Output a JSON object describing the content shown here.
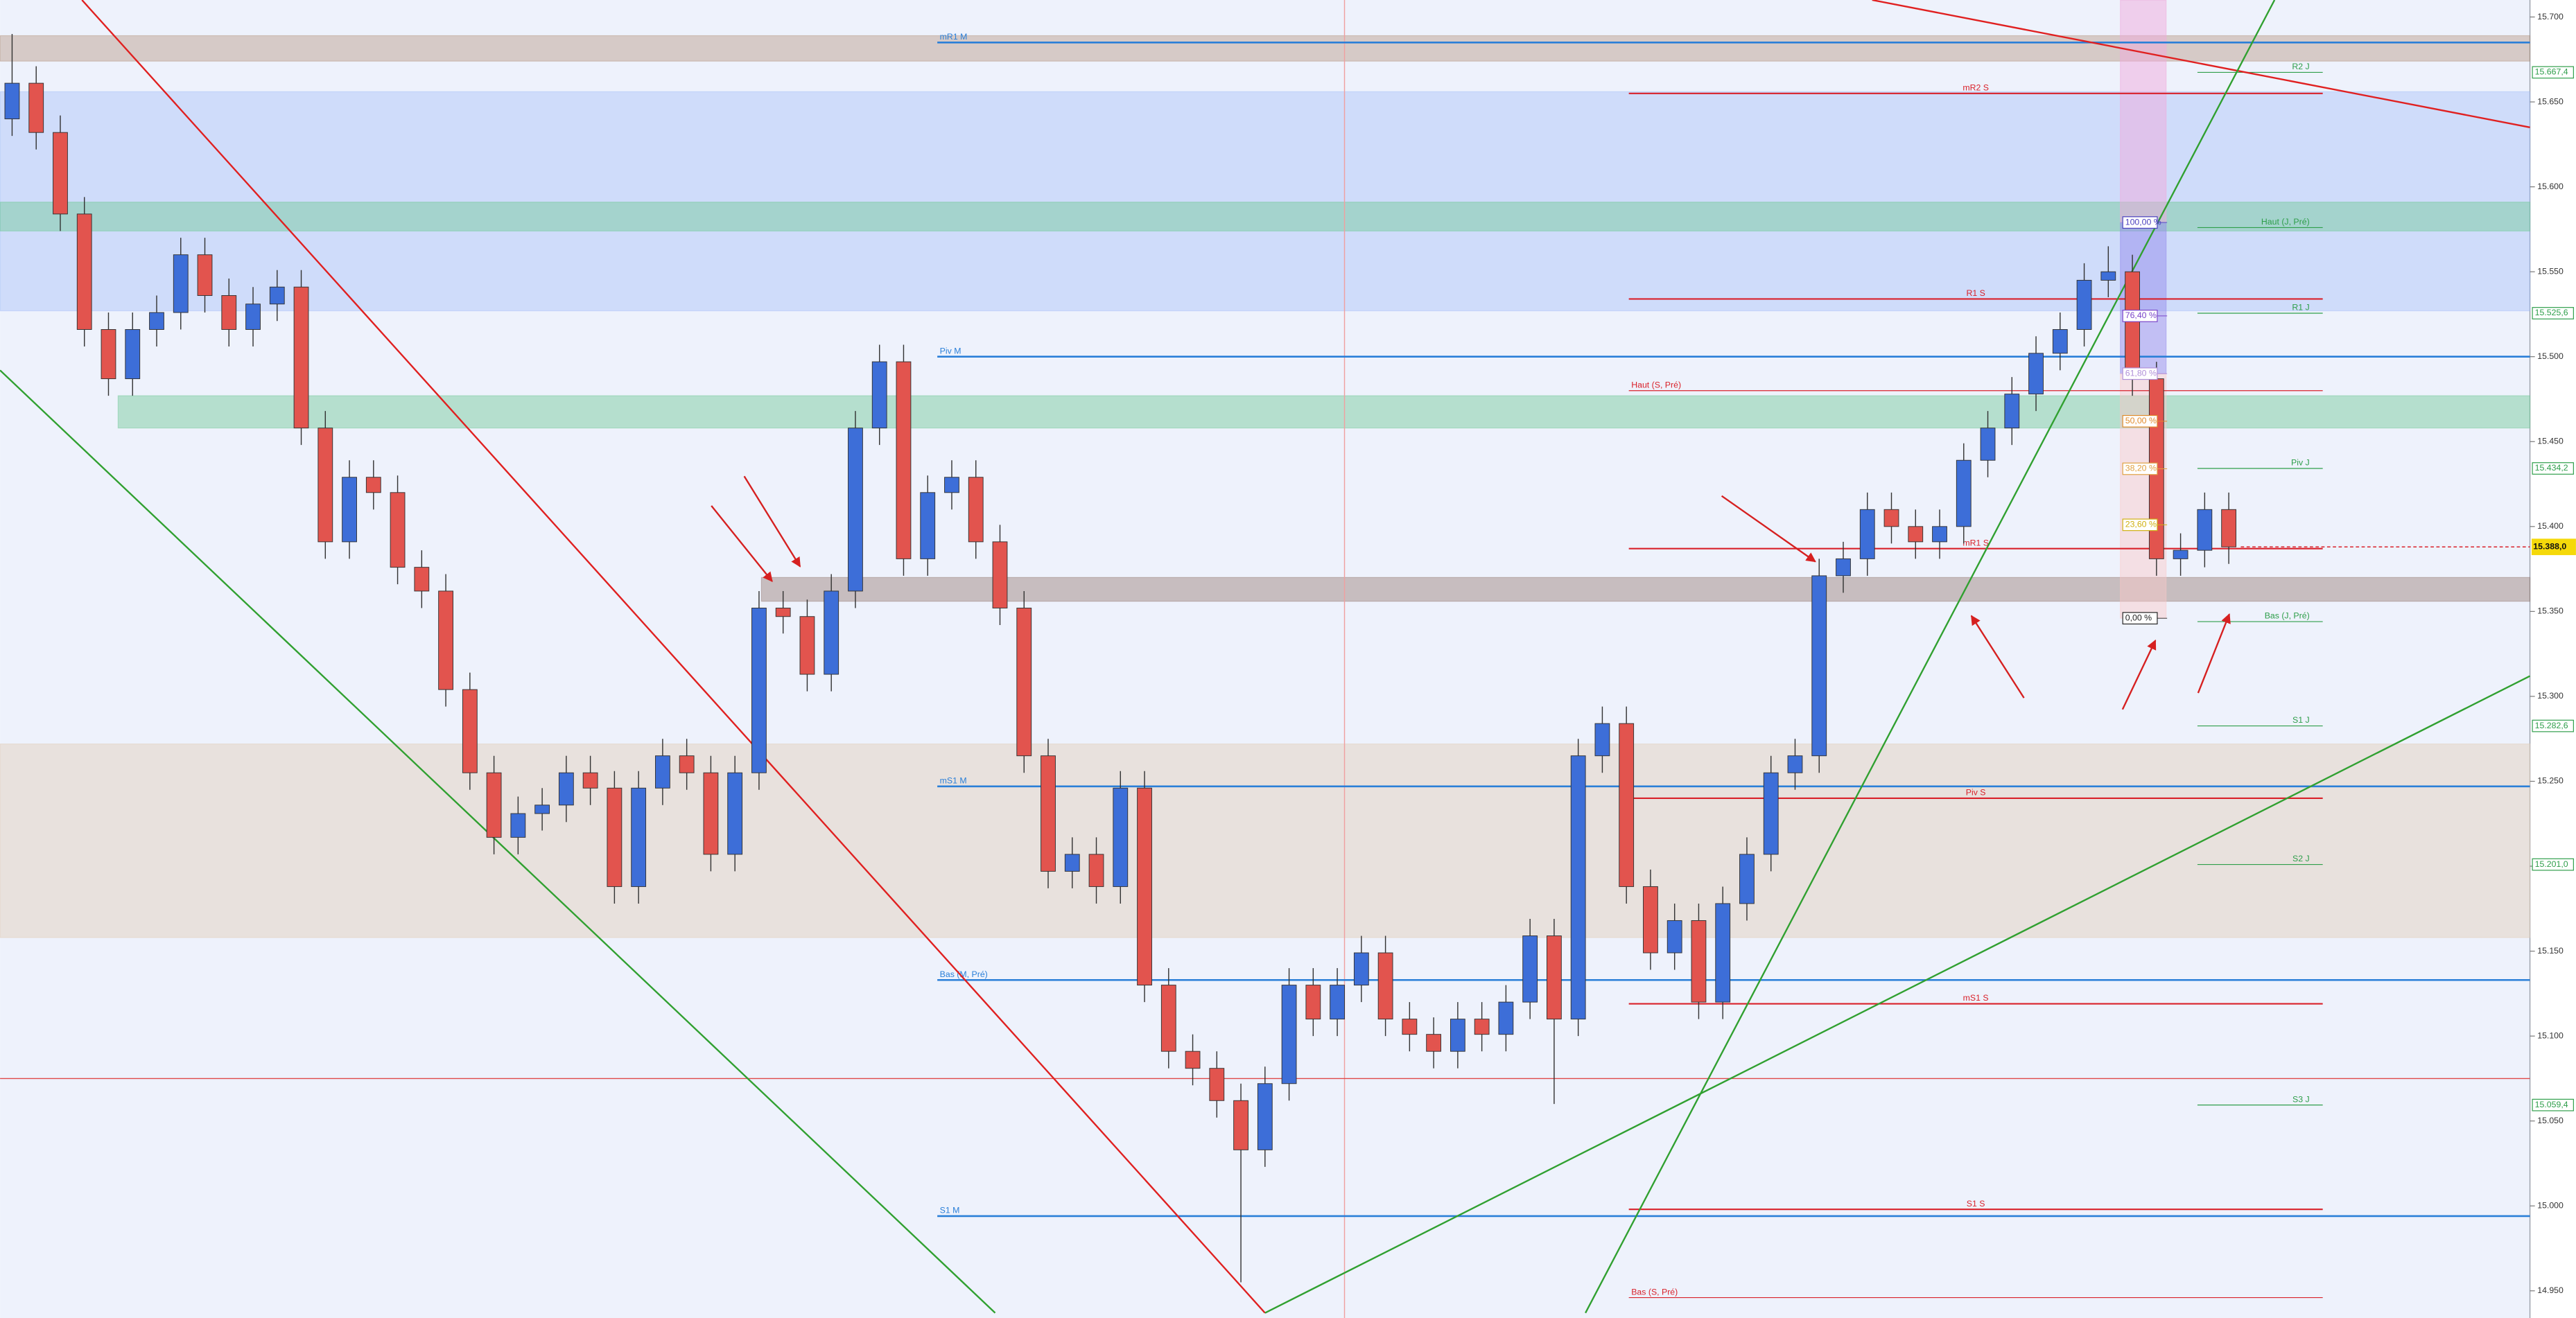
{
  "chart_data": {
    "type": "candlestick",
    "xlim": [
      0,
      105
    ],
    "ylim": [
      14934,
      15710
    ],
    "yticks": [
      {
        "value": 15700,
        "label": "15.700"
      },
      {
        "value": 15650,
        "label": "15.650"
      },
      {
        "value": 15600,
        "label": "15.600"
      },
      {
        "value": 15550,
        "label": "15.550"
      },
      {
        "value": 15500,
        "label": "15.500"
      },
      {
        "value": 15450,
        "label": "15.450"
      },
      {
        "value": 15400,
        "label": "15.400"
      },
      {
        "value": 15350,
        "label": "15.350"
      },
      {
        "value": 15300,
        "label": "15.300"
      },
      {
        "value": 15250,
        "label": "15.250"
      },
      {
        "value": 15200,
        "label": "15.200"
      },
      {
        "value": 15150,
        "label": "15.150"
      },
      {
        "value": 15100,
        "label": "15.100"
      },
      {
        "value": 15050,
        "label": "15.050"
      },
      {
        "value": 15000,
        "label": "15.000"
      },
      {
        "value": 14950,
        "label": "14.950"
      }
    ],
    "up_color": "#3d6ed8",
    "down_color": "#e2544e",
    "open": [
      15640,
      15661,
      15632,
      15584,
      15516,
      15487,
      15516,
      15526,
      15560,
      15536,
      15516,
      15531,
      15541,
      15458,
      15391,
      15429,
      15420,
      15376,
      15362,
      15304,
      15255,
      15217,
      15231,
      15236,
      15255,
      15246,
      15188,
      15246,
      15265,
      15255,
      15207,
      15255,
      15352,
      15347,
      15313,
      15362,
      15458,
      15497,
      15381,
      15420,
      15429,
      15391,
      15352,
      15265,
      15197,
      15207,
      15188,
      15246,
      15130,
      15091,
      15081,
      15062,
      15033,
      15072,
      15130,
      15110,
      15130,
      15149,
      15110,
      15101,
      15091,
      15110,
      15101,
      15120,
      15159,
      15110,
      15265,
      15284,
      15188,
      15149,
      15168,
      15120,
      15178,
      15207,
      15255,
      15265,
      15371,
      15381,
      15410,
      15400,
      15391,
      15400,
      15439,
      15458,
      15478,
      15502,
      15516,
      15545,
      15550,
      15487,
      15381,
      15386,
      15410
    ],
    "high": [
      15690,
      15671,
      15642,
      15594,
      15526,
      15526,
      15536,
      15570,
      15570,
      15546,
      15541,
      15551,
      15551,
      15468,
      15439,
      15439,
      15430,
      15386,
      15372,
      15314,
      15265,
      15241,
      15246,
      15265,
      15265,
      15256,
      15256,
      15275,
      15275,
      15265,
      15265,
      15362,
      15362,
      15357,
      15372,
      15468,
      15507,
      15507,
      15430,
      15439,
      15439,
      15401,
      15362,
      15275,
      15217,
      15217,
      15256,
      15256,
      15140,
      15101,
      15091,
      15072,
      15082,
      15140,
      15140,
      15140,
      15159,
      15159,
      15120,
      15111,
      15120,
      15120,
      15130,
      15169,
      15169,
      15275,
      15294,
      15294,
      15198,
      15178,
      15178,
      15188,
      15217,
      15265,
      15275,
      15381,
      15391,
      15420,
      15420,
      15410,
      15410,
      15449,
      15468,
      15488,
      15512,
      15526,
      15555,
      15565,
      15560,
      15497,
      15396,
      15420,
      15420
    ],
    "low": [
      15630,
      15622,
      15574,
      15506,
      15477,
      15477,
      15506,
      15516,
      15526,
      15506,
      15506,
      15521,
      15448,
      15381,
      15381,
      15410,
      15366,
      15352,
      15294,
      15245,
      15207,
      15207,
      15221,
      15226,
      15236,
      15178,
      15178,
      15236,
      15245,
      15197,
      15197,
      15245,
      15337,
      15303,
      15303,
      15352,
      15448,
      15371,
      15371,
      15410,
      15381,
      15342,
      15255,
      15187,
      15187,
      15178,
      15178,
      15120,
      15081,
      15071,
      15052,
      14955,
      15023,
      15062,
      15100,
      15100,
      15120,
      15100,
      15091,
      15081,
      15081,
      15091,
      15091,
      15110,
      15060,
      15100,
      15255,
      15178,
      15139,
      15139,
      15110,
      15110,
      15168,
      15197,
      15245,
      15255,
      15361,
      15371,
      15390,
      15381,
      15381,
      15390,
      15429,
      15448,
      15468,
      15492,
      15506,
      15535,
      15477,
      15371,
      15371,
      15376,
      15378
    ],
    "close": [
      15661,
      15632,
      15584,
      15516,
      15487,
      15516,
      15526,
      15560,
      15536,
      15516,
      15531,
      15541,
      15458,
      15391,
      15429,
      15420,
      15376,
      15362,
      15304,
      15255,
      15217,
      15231,
      15236,
      15255,
      15246,
      15188,
      15246,
      15265,
      15255,
      15207,
      15255,
      15352,
      15347,
      15313,
      15362,
      15458,
      15497,
      15381,
      15420,
      15429,
      15391,
      15352,
      15265,
      15197,
      15207,
      15188,
      15246,
      15130,
      15091,
      15081,
      15062,
      15033,
      15072,
      15130,
      15110,
      15130,
      15149,
      15110,
      15101,
      15091,
      15110,
      15101,
      15120,
      15159,
      15110,
      15265,
      15284,
      15188,
      15149,
      15168,
      15120,
      15178,
      15207,
      15255,
      15265,
      15371,
      15381,
      15410,
      15400,
      15391,
      15400,
      15439,
      15458,
      15478,
      15502,
      15516,
      15545,
      15550,
      15487,
      15381,
      15386,
      15410,
      15388
    ],
    "last": {
      "value": 15388,
      "label": "15.388,0",
      "color": "#f5d90a"
    },
    "zones": [
      {
        "from": 0,
        "to": 105,
        "y0": 15674,
        "y1": 15689,
        "color": "rgba(170,130,100,0.35)"
      },
      {
        "from": 0,
        "to": 105,
        "y0": 15527,
        "y1": 15656,
        "color": "rgba(150,180,245,0.35)"
      },
      {
        "from": 0,
        "to": 105,
        "y0": 15574,
        "y1": 15591,
        "color": "rgba(110,200,150,0.45)"
      },
      {
        "from": 4.9,
        "to": 105,
        "y0": 15458,
        "y1": 15477,
        "color": "rgba(110,200,150,0.45)"
      },
      {
        "from": 31.6,
        "to": 105,
        "y0": 15356,
        "y1": 15370,
        "color": "rgba(140,110,100,0.4)"
      },
      {
        "from": 0,
        "to": 105,
        "y0": 15158,
        "y1": 15272,
        "color": "rgba(225,205,185,0.45)"
      },
      {
        "from": 88.0,
        "to": 89.9,
        "y0": 15579,
        "y1": 15710,
        "color": "rgba(240,170,220,0.5)"
      },
      {
        "from": 88.0,
        "to": 89.9,
        "y0": 15490,
        "y1": 15579,
        "color": "rgba(150,140,235,0.5)"
      },
      {
        "from": 88.0,
        "to": 89.9,
        "y0": 15346,
        "y1": 15490,
        "color": "rgba(250,200,200,0.45)"
      }
    ],
    "hline": {
      "value": 15075,
      "color": "#e04848"
    },
    "vline": {
      "value": 55.8,
      "color": "#f0a0a0"
    },
    "trendlines": [
      {
        "color": "#e02020",
        "points": [
          [
            3.4,
            15710
          ],
          [
            52.5,
            14937
          ]
        ]
      },
      {
        "color": "#e02020",
        "points": [
          [
            77.7,
            15710
          ],
          [
            105,
            15635
          ]
        ]
      },
      {
        "color": "#30a030",
        "points": [
          [
            0,
            15492
          ],
          [
            41.3,
            14937
          ]
        ]
      },
      {
        "color": "#30a030",
        "points": [
          [
            52.5,
            14937
          ],
          [
            105,
            15312
          ]
        ]
      },
      {
        "color": "#30a030",
        "points": [
          [
            65.8,
            14937
          ],
          [
            94.4,
            15710
          ]
        ]
      }
    ],
    "level_groups": [
      {
        "color": "#2a7fd8",
        "from": 38.9,
        "to": 105,
        "lines": [
          {
            "label": "mR1 M",
            "value": 15685
          },
          {
            "label": "Piv M",
            "value": 15500
          },
          {
            "label": "mS1 M",
            "value": 15247
          },
          {
            "label": "Bas (M, Pré)",
            "value": 15133
          },
          {
            "label": "S1 M",
            "value": 14994
          }
        ]
      },
      {
        "color": "#d9212a",
        "from": 67.6,
        "to": 96.4,
        "lines": [
          {
            "label": "mR2 S",
            "value": 15655
          },
          {
            "label": "R1 S",
            "value": 15534
          },
          {
            "label": "mR1 S",
            "value": 15387
          },
          {
            "label": "Piv S",
            "value": 15240
          },
          {
            "label": "mS1 S",
            "value": 15119
          },
          {
            "label": "S1 S",
            "value": 14998
          }
        ]
      },
      {
        "color": "#d9212a",
        "from": 67.6,
        "to": 96.4,
        "lines": [
          {
            "label": "Haut (S, Pré)",
            "value": 15480
          },
          {
            "label": "Bas (S, Pré)",
            "value": 14946
          }
        ]
      },
      {
        "color": "#2e9e4a",
        "from": 91.2,
        "to": 96.4,
        "lines": [
          {
            "label": "R2 J",
            "value": 15667.4,
            "price_label": "15.667,4"
          },
          {
            "label": "Haut (J, Pré)",
            "value": 15576
          },
          {
            "label": "R1 J",
            "value": 15525.6,
            "price_label": "15.525,6"
          },
          {
            "label": "Piv J",
            "value": 15434.2,
            "price_label": "15.434,2"
          },
          {
            "label": "Bas (J, Pré)",
            "value": 15344
          },
          {
            "label": "S1 J",
            "value": 15282.6,
            "price_label": "15.282,6"
          },
          {
            "label": "S2 J",
            "value": 15201,
            "price_label": "15.201,0"
          },
          {
            "label": "S3 J",
            "value": 15059.4,
            "price_label": "15.059,4"
          }
        ]
      }
    ],
    "fib": {
      "from": 88.1,
      "levels": [
        {
          "value": 100,
          "label": "100,00 %",
          "price": 15579,
          "color": "#4a3fbf"
        },
        {
          "value": 76.4,
          "label": "76,40 %",
          "price": 15524,
          "color": "#7a44c8"
        },
        {
          "value": 61.8,
          "label": "61,80 %",
          "price": 15490,
          "color": "#b090d8"
        },
        {
          "value": 50,
          "label": "50,00 %",
          "price": 15462,
          "color": "#e08a2a"
        },
        {
          "value": 38.2,
          "label": "38,20 %",
          "price": 15434,
          "color": "#e0a040"
        },
        {
          "value": 23.6,
          "label": "23,60 %",
          "price": 15401,
          "color": "#d0b010"
        },
        {
          "value": 0,
          "label": "0,00 %",
          "price": 15346,
          "color": "#222222"
        }
      ]
    }
  }
}
